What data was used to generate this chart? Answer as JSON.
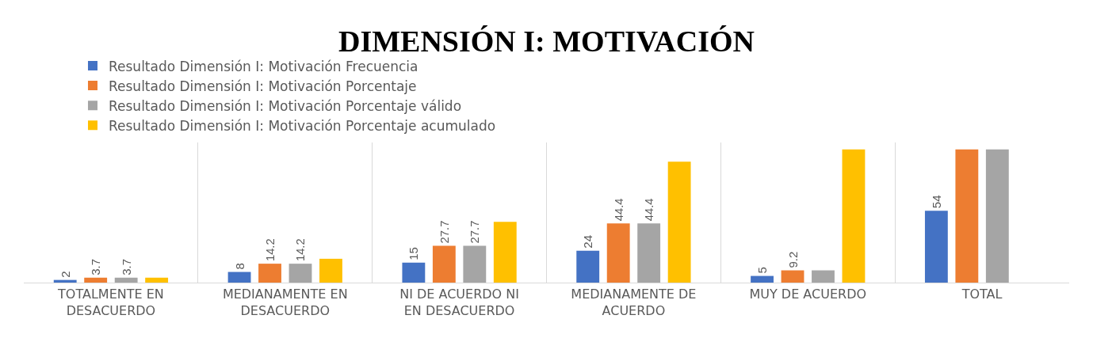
{
  "chart_data": {
    "type": "bar",
    "title": "DIMENSIÓN I: MOTIVACIÓN",
    "categories": [
      "TOTALMENTE EN DESACUERDO",
      "MEDIANAMENTE EN DESACUERDO",
      "NI DE ACUERDO NI EN DESACUERDO",
      "MEDIANAMENTE DE ACUERDO",
      "MUY DE ACUERDO",
      "TOTAL"
    ],
    "series": [
      {
        "name": "Resultado Dimensión I: Motivación Frecuencia",
        "color": "#4472c4",
        "values": [
          2,
          8,
          15,
          24,
          5,
          54
        ],
        "value_labels": [
          "2",
          "8",
          "15",
          "24",
          "5",
          "54"
        ]
      },
      {
        "name": "Resultado Dimensión I: Motivación Porcentaje",
        "color": "#ed7d31",
        "values": [
          3.7,
          14.2,
          27.7,
          44.4,
          9.2,
          100
        ],
        "value_labels": [
          "3.7",
          "14.2",
          "27.7",
          "44.4",
          "9.2",
          null
        ]
      },
      {
        "name": "Resultado Dimensión I: Motivación Porcentaje válido",
        "color": "#a5a5a5",
        "values": [
          3.7,
          14.2,
          27.7,
          44.4,
          9.2,
          100
        ],
        "value_labels": [
          "3.7",
          "14.2",
          "27.7",
          "44.4",
          null,
          null
        ]
      },
      {
        "name": "Resultado Dimensión I: Motivación Porcentaje acumulado",
        "color": "#ffc000",
        "values": [
          3.7,
          17.9,
          45.6,
          90.8,
          100,
          null
        ]
      }
    ],
    "grid": "x",
    "legend": "top",
    "tick_labels": "x"
  }
}
